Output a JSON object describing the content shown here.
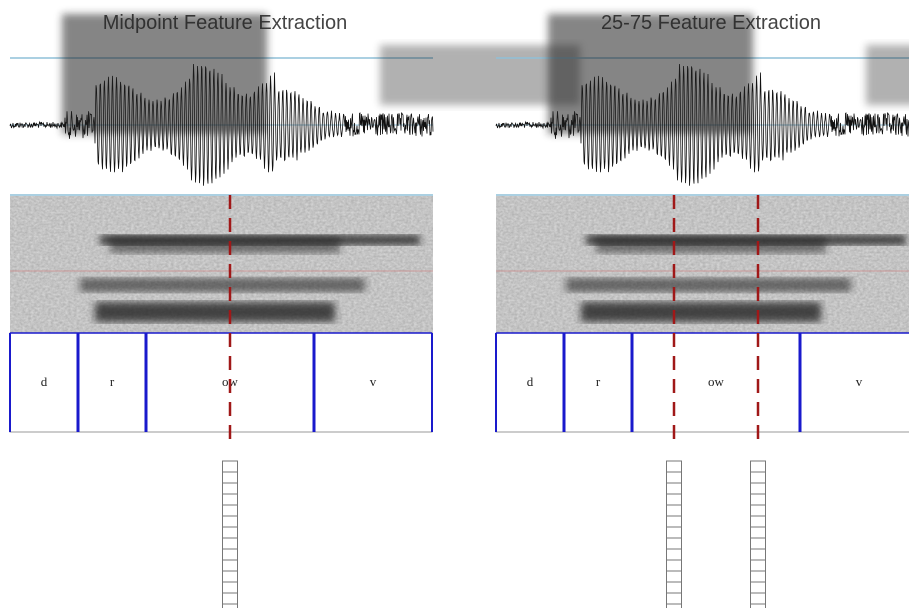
{
  "panels": [
    {
      "title": "Midpoint Feature Extraction",
      "segments": [
        "d",
        "r",
        "ow",
        "v"
      ]
    },
    {
      "title": "25-75 Feature Extraction",
      "segments": [
        "d",
        "r",
        "ow",
        "v"
      ]
    }
  ]
}
